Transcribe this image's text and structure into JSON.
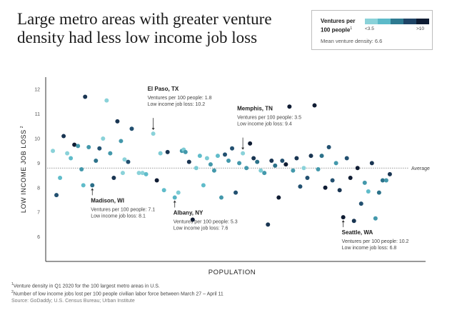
{
  "title": "Large metro areas with greater venture density had less low income job loss",
  "legend": {
    "title": "Ventures per 100 people",
    "title_sup": "1",
    "min_label": "<3.5",
    "max_label": ">10",
    "colors": [
      "#8ad2d9",
      "#5cbac9",
      "#2e7a91",
      "#1f4466",
      "#0f1c33"
    ],
    "mean_label": "Mean venture density: 6.6"
  },
  "footnotes": {
    "note1_sup": "1",
    "note1": "Venture density in Q1 2020 for the 100 largest metro areas in U.S.",
    "note2_sup": "2",
    "note2": "Number of low income jobs lost per 100 people civilian labor force between March 27 – April 11",
    "source": "Source: GoDaddy; U.S. Census Bureau; Urban Institute"
  },
  "chart_data": {
    "type": "scatter",
    "xlabel": "POPULATION",
    "ylabel": "LOW INCOME JOB LOSS",
    "ylabel_sup": "2",
    "ylim": [
      5,
      12.5
    ],
    "yticks": [
      6,
      7,
      8,
      9,
      10,
      11,
      12
    ],
    "xlim": [
      0,
      100
    ],
    "grid": false,
    "average": {
      "value": 8.8,
      "label": "Average"
    },
    "color_scale": {
      "min": 3.5,
      "max": 10,
      "colors": [
        "#8ad2d9",
        "#5cbac9",
        "#2e7a91",
        "#1f4466",
        "#0f1c33"
      ]
    },
    "annotations": [
      {
        "title": "El Paso, TX",
        "lines": [
          "Ventures per 100 people: 1.8",
          "Low income job loss: 10.2"
        ],
        "x": 30,
        "y": 10.2,
        "anchor": "above"
      },
      {
        "title": "Memphis, TN",
        "lines": [
          "Ventures per 100 people: 3.5",
          "Low income job loss: 9.4"
        ],
        "x": 55,
        "y": 9.4,
        "anchor": "above"
      },
      {
        "title": "Madison, WI",
        "lines": [
          "Ventures per 100 people: 7.1",
          "Low income job loss: 8.1"
        ],
        "x": 13,
        "y": 8.1,
        "anchor": "below"
      },
      {
        "title": "Albany, NY",
        "lines": [
          "Ventures per 100 people: 5.3",
          "Low income job loss: 7.6"
        ],
        "x": 36,
        "y": 7.6,
        "anchor": "below"
      },
      {
        "title": "Seattle, WA",
        "lines": [
          "Ventures per 100 people: 10.2",
          "Low income job loss: 6.8"
        ],
        "x": 83,
        "y": 6.8,
        "anchor": "below"
      }
    ],
    "points": [
      {
        "x": 2,
        "y": 9.5,
        "v": 2
      },
      {
        "x": 3,
        "y": 7.7,
        "v": 8
      },
      {
        "x": 4,
        "y": 8.4,
        "v": 5
      },
      {
        "x": 5,
        "y": 10.1,
        "v": 9
      },
      {
        "x": 6,
        "y": 9.4,
        "v": 3
      },
      {
        "x": 7,
        "y": 9.2,
        "v": 5
      },
      {
        "x": 8,
        "y": 9.75,
        "v": 10
      },
      {
        "x": 9,
        "y": 9.7,
        "v": 6
      },
      {
        "x": 10,
        "y": 8.75,
        "v": 6
      },
      {
        "x": 10.5,
        "y": 8.1,
        "v": 5
      },
      {
        "x": 11,
        "y": 11.7,
        "v": 9
      },
      {
        "x": 12,
        "y": 9.65,
        "v": 6
      },
      {
        "x": 13,
        "y": 8.1,
        "v": 7.1
      },
      {
        "x": 14,
        "y": 9.1,
        "v": 7
      },
      {
        "x": 15,
        "y": 9.6,
        "v": 8
      },
      {
        "x": 16,
        "y": 10.0,
        "v": 3
      },
      {
        "x": 17,
        "y": 11.55,
        "v": 3
      },
      {
        "x": 18,
        "y": 9.4,
        "v": 6
      },
      {
        "x": 19,
        "y": 8.4,
        "v": 9
      },
      {
        "x": 20,
        "y": 10.7,
        "v": 9
      },
      {
        "x": 21,
        "y": 9.9,
        "v": 6
      },
      {
        "x": 21.5,
        "y": 8.6,
        "v": 3
      },
      {
        "x": 22,
        "y": 9.15,
        "v": 3
      },
      {
        "x": 23,
        "y": 9.05,
        "v": 8
      },
      {
        "x": 24,
        "y": 10.4,
        "v": 8
      },
      {
        "x": 26,
        "y": 8.6,
        "v": 3
      },
      {
        "x": 27,
        "y": 8.6,
        "v": 3
      },
      {
        "x": 28,
        "y": 8.55,
        "v": 5
      },
      {
        "x": 30,
        "y": 10.2,
        "v": 1.8
      },
      {
        "x": 31,
        "y": 8.3,
        "v": 10
      },
      {
        "x": 32,
        "y": 9.4,
        "v": 4
      },
      {
        "x": 33,
        "y": 7.9,
        "v": 5
      },
      {
        "x": 34,
        "y": 9.45,
        "v": 9
      },
      {
        "x": 36,
        "y": 7.6,
        "v": 5.3
      },
      {
        "x": 37,
        "y": 7.8,
        "v": 4
      },
      {
        "x": 38,
        "y": 9.5,
        "v": 6
      },
      {
        "x": 38.5,
        "y": 9.55,
        "v": 4
      },
      {
        "x": 39,
        "y": 9.45,
        "v": 6
      },
      {
        "x": 40,
        "y": 9.05,
        "v": 9
      },
      {
        "x": 41,
        "y": 6.7,
        "v": 10
      },
      {
        "x": 42,
        "y": 8.8,
        "v": 4
      },
      {
        "x": 43,
        "y": 9.3,
        "v": 5
      },
      {
        "x": 44,
        "y": 8.1,
        "v": 5
      },
      {
        "x": 45,
        "y": 9.2,
        "v": 4
      },
      {
        "x": 46,
        "y": 8.95,
        "v": 6
      },
      {
        "x": 47,
        "y": 8.7,
        "v": 6
      },
      {
        "x": 48,
        "y": 9.3,
        "v": 5
      },
      {
        "x": 49,
        "y": 7.6,
        "v": 6
      },
      {
        "x": 50,
        "y": 9.35,
        "v": 8
      },
      {
        "x": 51,
        "y": 9.1,
        "v": 6
      },
      {
        "x": 52,
        "y": 9.6,
        "v": 8
      },
      {
        "x": 53,
        "y": 7.8,
        "v": 8
      },
      {
        "x": 54,
        "y": 9.0,
        "v": 6
      },
      {
        "x": 55,
        "y": 9.4,
        "v": 3.5
      },
      {
        "x": 56,
        "y": 8.8,
        "v": 6
      },
      {
        "x": 57,
        "y": 9.8,
        "v": 10
      },
      {
        "x": 58,
        "y": 9.2,
        "v": 9
      },
      {
        "x": 59,
        "y": 9.05,
        "v": 7
      },
      {
        "x": 60,
        "y": 8.7,
        "v": 4
      },
      {
        "x": 61,
        "y": 8.6,
        "v": 6
      },
      {
        "x": 62,
        "y": 6.5,
        "v": 9
      },
      {
        "x": 63,
        "y": 9.1,
        "v": 9
      },
      {
        "x": 64,
        "y": 8.9,
        "v": 7
      },
      {
        "x": 65,
        "y": 7.6,
        "v": 10
      },
      {
        "x": 66,
        "y": 9.1,
        "v": 8
      },
      {
        "x": 67,
        "y": 8.95,
        "v": 10
      },
      {
        "x": 68,
        "y": 11.3,
        "v": 10
      },
      {
        "x": 69,
        "y": 8.7,
        "v": 6
      },
      {
        "x": 70,
        "y": 9.2,
        "v": 9
      },
      {
        "x": 71,
        "y": 8.05,
        "v": 8
      },
      {
        "x": 72,
        "y": 8.8,
        "v": 3
      },
      {
        "x": 73,
        "y": 8.4,
        "v": 8
      },
      {
        "x": 74,
        "y": 9.3,
        "v": 9
      },
      {
        "x": 75,
        "y": 11.35,
        "v": 10
      },
      {
        "x": 76,
        "y": 8.75,
        "v": 6
      },
      {
        "x": 77,
        "y": 9.3,
        "v": 7
      },
      {
        "x": 78,
        "y": 8.0,
        "v": 10
      },
      {
        "x": 79,
        "y": 9.65,
        "v": 8
      },
      {
        "x": 80,
        "y": 8.3,
        "v": 8
      },
      {
        "x": 81,
        "y": 9.0,
        "v": 6
      },
      {
        "x": 82,
        "y": 7.9,
        "v": 9
      },
      {
        "x": 83,
        "y": 6.8,
        "v": 10.2
      },
      {
        "x": 84,
        "y": 9.2,
        "v": 8
      },
      {
        "x": 85,
        "y": 8.4,
        "v": 10
      },
      {
        "x": 86,
        "y": 6.65,
        "v": 9
      },
      {
        "x": 87,
        "y": 8.8,
        "v": 10
      },
      {
        "x": 88,
        "y": 7.35,
        "v": 8
      },
      {
        "x": 89,
        "y": 8.2,
        "v": 6
      },
      {
        "x": 90,
        "y": 7.85,
        "v": 5
      },
      {
        "x": 91,
        "y": 9.0,
        "v": 9
      },
      {
        "x": 92,
        "y": 6.75,
        "v": 6
      },
      {
        "x": 93,
        "y": 7.8,
        "v": 7
      },
      {
        "x": 94,
        "y": 8.3,
        "v": 7
      },
      {
        "x": 95,
        "y": 8.3,
        "v": 6
      },
      {
        "x": 96,
        "y": 8.55,
        "v": 9
      }
    ]
  }
}
